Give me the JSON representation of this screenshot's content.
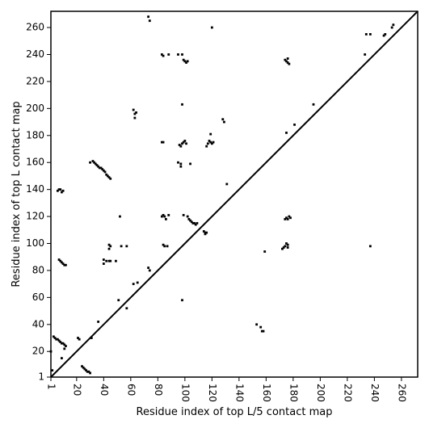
{
  "chart_data": {
    "type": "scatter",
    "title": "",
    "xlabel": "Residue index of top L/5 contact map",
    "ylabel": "Residue index of top L contact map",
    "xlim": [
      1,
      272
    ],
    "ylim": [
      1,
      272
    ],
    "xticks": [
      1,
      20,
      40,
      60,
      80,
      100,
      120,
      140,
      160,
      180,
      200,
      220,
      240,
      260
    ],
    "yticks": [
      1,
      20,
      40,
      60,
      80,
      100,
      120,
      140,
      160,
      180,
      200,
      220,
      240,
      260
    ],
    "diagonal_line": true,
    "grid": false,
    "legend": "none",
    "colors": {
      "points": "#000000",
      "line": "#000000",
      "axis": "#000000"
    },
    "series": [
      {
        "values_x_y": [
          [
            6,
            139
          ],
          [
            7,
            140
          ],
          [
            8,
            140
          ],
          [
            9,
            138
          ],
          [
            10,
            139
          ],
          [
            7,
            88
          ],
          [
            8,
            87
          ],
          [
            9,
            86
          ],
          [
            10,
            85
          ],
          [
            11,
            84
          ],
          [
            12,
            84
          ],
          [
            3,
            31
          ],
          [
            4,
            30
          ],
          [
            5,
            29
          ],
          [
            6,
            29
          ],
          [
            7,
            28
          ],
          [
            8,
            27
          ],
          [
            9,
            26
          ],
          [
            10,
            26
          ],
          [
            11,
            25
          ],
          [
            12,
            24
          ],
          [
            11,
            22
          ],
          [
            9,
            15
          ],
          [
            24,
            9
          ],
          [
            25,
            8
          ],
          [
            26,
            7
          ],
          [
            27,
            6
          ],
          [
            28,
            5
          ],
          [
            29,
            5
          ],
          [
            30,
            4
          ],
          [
            21,
            30
          ],
          [
            22,
            29
          ],
          [
            36,
            42
          ],
          [
            31,
            30
          ],
          [
            2,
            6
          ],
          [
            1,
            20
          ],
          [
            30,
            160
          ],
          [
            32,
            161
          ],
          [
            33,
            160
          ],
          [
            34,
            159
          ],
          [
            35,
            158
          ],
          [
            36,
            157
          ],
          [
            37,
            156
          ],
          [
            38,
            156
          ],
          [
            39,
            155
          ],
          [
            40,
            154
          ],
          [
            41,
            153
          ],
          [
            42,
            151
          ],
          [
            43,
            150
          ],
          [
            44,
            149
          ],
          [
            45,
            148
          ],
          [
            40,
            88
          ],
          [
            40,
            85
          ],
          [
            42,
            87
          ],
          [
            44,
            87
          ],
          [
            45,
            87
          ],
          [
            49,
            87
          ],
          [
            44,
            99
          ],
          [
            45,
            98
          ],
          [
            44,
            96
          ],
          [
            52,
            120
          ],
          [
            53,
            98
          ],
          [
            57,
            98
          ],
          [
            51,
            58
          ],
          [
            57,
            52
          ],
          [
            62,
            199
          ],
          [
            63,
            196
          ],
          [
            63,
            193
          ],
          [
            64,
            197
          ],
          [
            62,
            70
          ],
          [
            65,
            71
          ],
          [
            73,
            268
          ],
          [
            74,
            265
          ],
          [
            73,
            82
          ],
          [
            74,
            80
          ],
          [
            83,
            240
          ],
          [
            84,
            239
          ],
          [
            88,
            240
          ],
          [
            95,
            240
          ],
          [
            98,
            240
          ],
          [
            99,
            236
          ],
          [
            100,
            235
          ],
          [
            101,
            234
          ],
          [
            102,
            235
          ],
          [
            98,
            203
          ],
          [
            83,
            175
          ],
          [
            84,
            175
          ],
          [
            96,
            173
          ],
          [
            97,
            172
          ],
          [
            98,
            174
          ],
          [
            99,
            175
          ],
          [
            100,
            176
          ],
          [
            101,
            174
          ],
          [
            97,
            159
          ],
          [
            97,
            157
          ],
          [
            95,
            160
          ],
          [
            104,
            159
          ],
          [
            83,
            120
          ],
          [
            84,
            121
          ],
          [
            85,
            120
          ],
          [
            86,
            118
          ],
          [
            88,
            121
          ],
          [
            99,
            121
          ],
          [
            102,
            120
          ],
          [
            84,
            99
          ],
          [
            85,
            98
          ],
          [
            87,
            98
          ],
          [
            98,
            58
          ],
          [
            103,
            118
          ],
          [
            104,
            117
          ],
          [
            105,
            116
          ],
          [
            106,
            115
          ],
          [
            107,
            115
          ],
          [
            108,
            114
          ],
          [
            109,
            115
          ],
          [
            114,
            109
          ],
          [
            115,
            108
          ],
          [
            116,
            108
          ],
          [
            115,
            107
          ],
          [
            116,
            172
          ],
          [
            117,
            174
          ],
          [
            118,
            176
          ],
          [
            119,
            175
          ],
          [
            120,
            174
          ],
          [
            121,
            175
          ],
          [
            119,
            181
          ],
          [
            120,
            260
          ],
          [
            128,
            192
          ],
          [
            129,
            190
          ],
          [
            131,
            144
          ],
          [
            153,
            40
          ],
          [
            156,
            38
          ],
          [
            157,
            35
          ],
          [
            158,
            35
          ],
          [
            159,
            94
          ],
          [
            172,
            96
          ],
          [
            173,
            97
          ],
          [
            174,
            98
          ],
          [
            175,
            100
          ],
          [
            176,
            99
          ],
          [
            176,
            97
          ],
          [
            174,
            118
          ],
          [
            175,
            119
          ],
          [
            176,
            118
          ],
          [
            177,
            120
          ],
          [
            178,
            119
          ],
          [
            174,
            236
          ],
          [
            175,
            235
          ],
          [
            176,
            234
          ],
          [
            177,
            233
          ],
          [
            176,
            237
          ],
          [
            175,
            182
          ],
          [
            181,
            188
          ],
          [
            195,
            203
          ],
          [
            233,
            240
          ],
          [
            234,
            255
          ],
          [
            237,
            255
          ],
          [
            237,
            98
          ],
          [
            247,
            254
          ],
          [
            248,
            255
          ],
          [
            253,
            260
          ],
          [
            254,
            262
          ]
        ]
      }
    ]
  }
}
